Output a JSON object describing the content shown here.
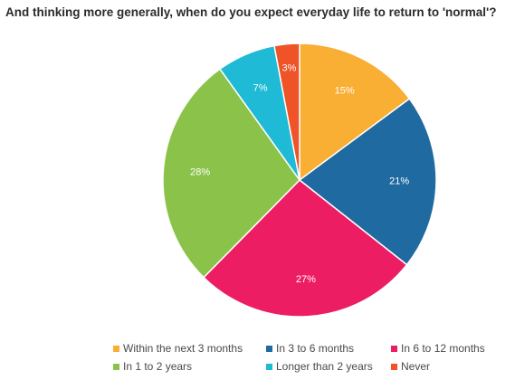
{
  "chart_data": {
    "type": "pie",
    "title": "And thinking more generally, when do you expect everyday life to return to 'normal'?",
    "slices": [
      {
        "label": "Within the next 3 months",
        "value": 15,
        "data_label": "15%",
        "color": "#f9ae34"
      },
      {
        "label": "In 3 to 6 months",
        "value": 21,
        "data_label": "21%",
        "color": "#1f6aa0"
      },
      {
        "label": "In 6 to 12 months",
        "value": 27,
        "data_label": "27%",
        "color": "#ec1d63"
      },
      {
        "label": "In 1 to 2 years",
        "value": 28,
        "data_label": "28%",
        "color": "#8bc34a"
      },
      {
        "label": "Longer than 2 years",
        "value": 7,
        "data_label": "7%",
        "color": "#1ebad6"
      },
      {
        "label": "Never",
        "value": 3,
        "data_label": "3%",
        "color": "#ef5428"
      }
    ],
    "legend_position": "bottom"
  }
}
